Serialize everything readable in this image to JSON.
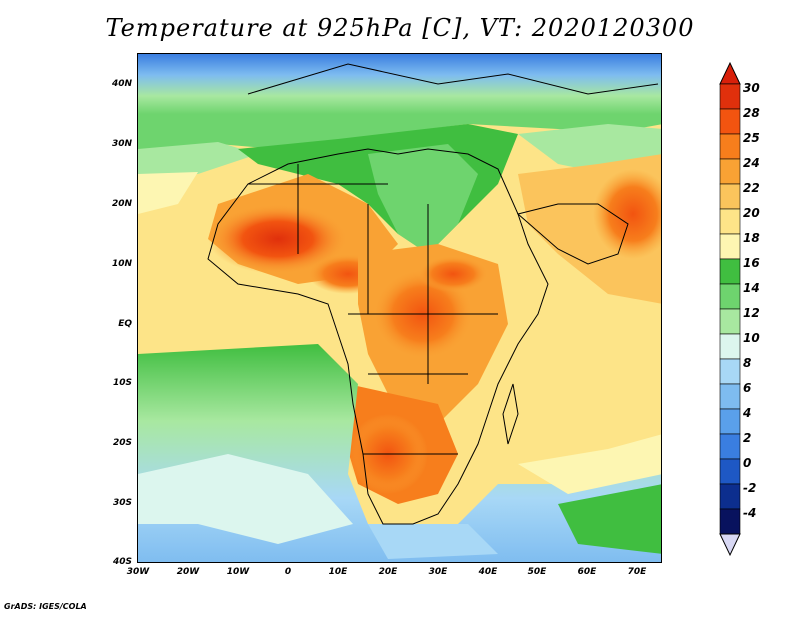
{
  "title": "Temperature at 925hPa [C], VT: 2020120300",
  "credit": "GrADS: IGES/COLA",
  "map": {
    "lat_range": [
      -40,
      45
    ],
    "lon_range": [
      -30,
      75
    ],
    "lat_labels": [
      "40N",
      "30N",
      "20N",
      "10N",
      "EQ",
      "10S",
      "20S",
      "30S",
      "40S"
    ],
    "lon_labels": [
      "30W",
      "20W",
      "10W",
      "0",
      "10E",
      "20E",
      "30E",
      "40E",
      "50E",
      "60E",
      "70E"
    ]
  },
  "colorbar": {
    "labels": [
      "30",
      "28",
      "25",
      "24",
      "22",
      "20",
      "18",
      "16",
      "14",
      "12",
      "10",
      "8",
      "6",
      "4",
      "2",
      "0",
      "-2",
      "-4"
    ],
    "colors": [
      "#e0300c",
      "#f25410",
      "#f77e1c",
      "#f9a234",
      "#fbc45c",
      "#fde488",
      "#fdf6b2",
      "#40be40",
      "#6ed46e",
      "#a8e8a0",
      "#dcf6ee",
      "#a8d8f6",
      "#7ebcf0",
      "#5aa0ea",
      "#3a7ee0",
      "#1e58c4",
      "#0c2e8e",
      "#08125e"
    ],
    "top_color": "#d8200a",
    "bottom_color": "#d8d8f4"
  }
}
